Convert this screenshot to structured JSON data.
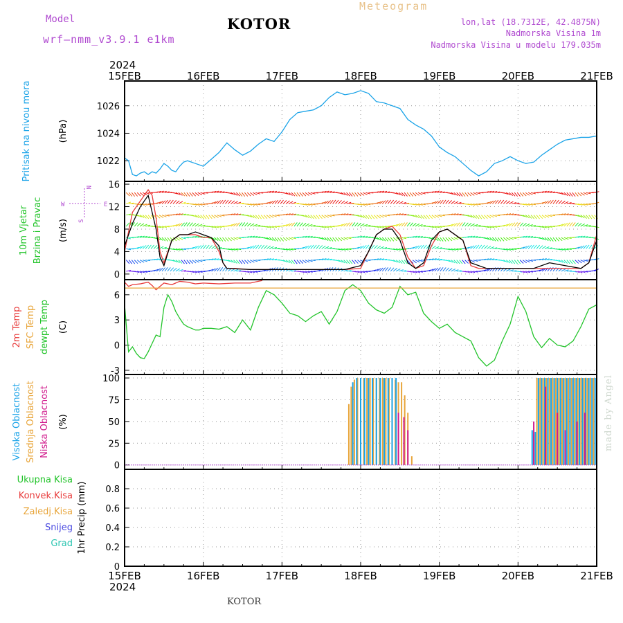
{
  "header": {
    "model_label": "Model",
    "model_name": "wrf—nmm_v3.9.1 e1km",
    "city": "KOTOR",
    "meteogram": "Meteogram",
    "lonlat": "lon,lat (18.7312E, 42.4875N)",
    "altitude": "Nadmorska Visina 1m",
    "model_altitude": "Nadmorska Visina u modelu 179.035m",
    "footer_city": "KOTOR",
    "credit": "made by Angel"
  },
  "colors": {
    "pressure": "#1aa3e8",
    "dewpoint": "#22c42a",
    "temp2m": "#e83a3a",
    "sfc_temp": "#e8a53a",
    "high_cloud": "#1aa3e8",
    "mid_cloud": "#e8a53a",
    "low_cloud": "#d01a8c",
    "wind_speed": "#e83a3a",
    "wind_alt_line": "#000000",
    "model_text": "#b04ad0",
    "meteogram_text": "#e8c28a"
  },
  "chart_data": {
    "type": "meteogram",
    "x_axis": {
      "year": "2024",
      "tick_labels": [
        "15FEB",
        "16FEB",
        "17FEB",
        "18FEB",
        "19FEB",
        "20FEB",
        "21FEB"
      ],
      "range_days": [
        0,
        6
      ]
    },
    "panels": [
      {
        "id": "pressure",
        "ylabel_lines": [
          "Pritisak na nivou mora"
        ],
        "unit": "(hPa)",
        "ylim": [
          1020.5,
          1027.8
        ],
        "yticks": [
          1022,
          1024,
          1026
        ],
        "grid": true,
        "series": [
          {
            "name": "pressure",
            "x": [
              0,
              0.05,
              0.1,
              0.15,
              0.2,
              0.25,
              0.3,
              0.35,
              0.4,
              0.45,
              0.5,
              0.55,
              0.6,
              0.65,
              0.7,
              0.75,
              0.8,
              0.9,
              1.0,
              1.1,
              1.2,
              1.3,
              1.4,
              1.5,
              1.6,
              1.7,
              1.8,
              1.9,
              2.0,
              2.1,
              2.2,
              2.3,
              2.4,
              2.5,
              2.6,
              2.7,
              2.8,
              2.9,
              3.0,
              3.1,
              3.2,
              3.3,
              3.4,
              3.5,
              3.6,
              3.7,
              3.8,
              3.9,
              4.0,
              4.1,
              4.2,
              4.3,
              4.4,
              4.5,
              4.6,
              4.7,
              4.8,
              4.9,
              5.0,
              5.1,
              5.2,
              5.3,
              5.4,
              5.5,
              5.6,
              5.7,
              5.8,
              5.9,
              6.0
            ],
            "values": [
              1022.2,
              1022.0,
              1021.0,
              1020.9,
              1021.1,
              1021.2,
              1021.0,
              1021.2,
              1021.1,
              1021.4,
              1021.8,
              1021.6,
              1021.3,
              1021.2,
              1021.6,
              1021.9,
              1022.0,
              1021.8,
              1021.6,
              1022.1,
              1022.6,
              1023.3,
              1022.8,
              1022.4,
              1022.7,
              1023.2,
              1023.6,
              1023.4,
              1024.1,
              1025.0,
              1025.5,
              1025.6,
              1025.7,
              1026.0,
              1026.6,
              1027.0,
              1026.8,
              1026.9,
              1027.1,
              1026.9,
              1026.3,
              1026.2,
              1026.0,
              1025.8,
              1025.0,
              1024.6,
              1024.3,
              1023.8,
              1023.0,
              1022.6,
              1022.3,
              1021.8,
              1021.3,
              1020.9,
              1021.2,
              1021.8,
              1022.0,
              1022.3,
              1022.0,
              1021.8,
              1021.9,
              1022.4,
              1022.8,
              1023.2,
              1023.5,
              1023.6,
              1023.7,
              1023.7,
              1023.8
            ]
          }
        ]
      },
      {
        "id": "wind",
        "ylabel_lines": [
          "10m Vjetar",
          "Brzina i Pravac"
        ],
        "unit": "(m/s)",
        "ylim": [
          -1,
          16.5
        ],
        "yticks": [
          0,
          4,
          8,
          12,
          16
        ],
        "grid": true,
        "series": [
          {
            "name": "wind_speed",
            "x": [
              0,
              0.1,
              0.2,
              0.3,
              0.35,
              0.4,
              0.45,
              0.5,
              0.6,
              0.7,
              0.8,
              0.9,
              1.0,
              1.1,
              1.2,
              1.25,
              1.3,
              1.4,
              1.6,
              1.8,
              2.0,
              2.2,
              2.4,
              2.6,
              2.8,
              3.0,
              3.1,
              3.2,
              3.3,
              3.4,
              3.5,
              3.6,
              3.7,
              3.8,
              3.9,
              4.0,
              4.1,
              4.2,
              4.3,
              4.4,
              4.5,
              4.6,
              4.8,
              5.0,
              5.2,
              5.4,
              5.6,
              5.8,
              5.9,
              6.0
            ],
            "values": [
              4,
              11,
              13,
              15,
              14,
              10,
              4,
              2,
              6,
              7,
              7,
              7,
              6.5,
              6.5,
              4,
              2,
              1,
              1,
              0.8,
              0.8,
              0.8,
              0.8,
              0.8,
              0.8,
              0.8,
              1,
              4,
              7,
              8,
              8.5,
              7,
              3,
              1,
              1.5,
              5,
              7.5,
              8,
              7,
              6,
              1.5,
              1,
              1,
              1,
              1,
              1,
              1,
              1,
              1,
              2,
              7
            ]
          },
          {
            "name": "wind_alt_line",
            "x": [
              0,
              0.1,
              0.2,
              0.3,
              0.4,
              0.45,
              0.5,
              0.6,
              0.7,
              0.8,
              0.9,
              1.0,
              1.1,
              1.2,
              1.25,
              1.3,
              1.6,
              2.0,
              2.4,
              2.8,
              3.0,
              3.1,
              3.2,
              3.3,
              3.4,
              3.5,
              3.6,
              3.7,
              3.8,
              3.9,
              4.0,
              4.1,
              4.2,
              4.3,
              4.4,
              4.6,
              5.0,
              5.2,
              5.4,
              5.6,
              5.8,
              5.9,
              6.0
            ],
            "values": [
              5,
              9,
              12,
              14,
              8,
              3,
              1.5,
              6,
              7,
              7,
              7.5,
              7,
              6.5,
              5,
              2,
              1,
              0.8,
              0.8,
              0.8,
              0.8,
              1.5,
              4,
              7,
              8,
              8,
              6,
              2,
              1,
              2,
              6,
              7.5,
              8,
              7,
              6,
              2,
              1,
              1,
              1,
              2,
              1.5,
              1,
              2,
              6
            ]
          }
        ]
      },
      {
        "id": "temperature",
        "ylabel_lines": [
          "2m Temp",
          "SFC Temp",
          "dewpt Temp"
        ],
        "unit": "(C)",
        "ylim": [
          -3.5,
          7.8
        ],
        "yticks": [
          -3,
          0,
          3,
          6
        ],
        "grid": true,
        "series": [
          {
            "name": "dewpoint",
            "x": [
              0,
              0.05,
              0.1,
              0.15,
              0.2,
              0.25,
              0.3,
              0.35,
              0.4,
              0.45,
              0.5,
              0.55,
              0.6,
              0.65,
              0.7,
              0.75,
              0.8,
              0.85,
              0.9,
              0.95,
              1.0,
              1.1,
              1.2,
              1.3,
              1.4,
              1.5,
              1.6,
              1.7,
              1.8,
              1.9,
              2.0,
              2.1,
              2.2,
              2.3,
              2.4,
              2.5,
              2.6,
              2.7,
              2.8,
              2.9,
              3.0,
              3.1,
              3.2,
              3.3,
              3.4,
              3.5,
              3.6,
              3.7,
              3.8,
              3.9,
              4.0,
              4.1,
              4.2,
              4.3,
              4.4,
              4.5,
              4.6,
              4.7,
              4.8,
              4.9,
              5.0,
              5.1,
              5.2,
              5.3,
              5.4,
              5.5,
              5.6,
              5.7,
              5.8,
              5.9,
              6.0
            ],
            "values": [
              4.8,
              -0.8,
              -0.2,
              -1.0,
              -1.5,
              -1.6,
              -0.8,
              0.2,
              1.2,
              1.0,
              4.5,
              6.0,
              5.2,
              4.0,
              3.2,
              2.5,
              2.2,
              2.0,
              1.8,
              1.8,
              2.0,
              2.0,
              1.9,
              2.2,
              1.5,
              3.0,
              1.8,
              4.5,
              6.5,
              6.0,
              5.0,
              3.8,
              3.5,
              2.8,
              3.5,
              4.0,
              2.5,
              4.0,
              6.5,
              7.2,
              6.5,
              5.0,
              4.2,
              3.8,
              4.5,
              7.0,
              6.0,
              6.3,
              3.8,
              2.8,
              2.0,
              2.5,
              1.5,
              1.0,
              0.5,
              -1.5,
              -2.5,
              -1.8,
              0.5,
              2.5,
              5.8,
              4.0,
              1.0,
              -0.3,
              0.8,
              0.0,
              -0.2,
              0.5,
              2.2,
              4.3,
              4.8
            ]
          },
          {
            "name": "temp2m",
            "x": [
              0,
              0.05,
              0.1,
              0.2,
              0.3,
              0.35,
              0.4,
              0.5,
              0.6,
              0.7,
              0.8,
              0.9,
              1.0,
              1.2,
              1.4,
              1.5,
              1.6,
              1.7,
              1.75
            ],
            "values": [
              7.5,
              7.0,
              7.2,
              7.3,
              7.5,
              7.1,
              6.6,
              7.4,
              7.2,
              7.6,
              7.5,
              7.3,
              7.4,
              7.3,
              7.4,
              7.4,
              7.4,
              7.6,
              7.7
            ]
          },
          {
            "name": "sfc_temp",
            "x": [
              0,
              6
            ],
            "values": [
              6.8,
              6.8
            ]
          }
        ]
      },
      {
        "id": "clouds",
        "ylabel_lines": [
          "Visoka Oblacnost",
          "Srednja Oblacnost",
          "Niska Oblacnost"
        ],
        "unit": "(%)",
        "ylim": [
          -5,
          104
        ],
        "yticks": [
          0,
          25,
          50,
          75,
          100
        ],
        "grid": true,
        "series": [
          {
            "name": "mid_cloud",
            "x": [
              2.85,
              2.88,
              2.92,
              2.96,
              3.0,
              3.04,
              3.08,
              3.12,
              3.16,
              3.2,
              3.24,
              3.28,
              3.32,
              3.36,
              3.4,
              3.44,
              3.48,
              3.52,
              3.56,
              3.6,
              3.65,
              5.2,
              5.24,
              5.28,
              5.32,
              5.36,
              5.4,
              5.44,
              5.48,
              5.52,
              5.56,
              5.6,
              5.64,
              5.68,
              5.72,
              5.76,
              5.8,
              5.84,
              5.88,
              5.92,
              5.96
            ],
            "values": [
              70,
              90,
              98,
              100,
              100,
              100,
              100,
              100,
              100,
              100,
              100,
              100,
              100,
              100,
              100,
              98,
              95,
              95,
              80,
              60,
              10,
              35,
              100,
              100,
              100,
              100,
              100,
              100,
              100,
              100,
              100,
              100,
              100,
              100,
              100,
              100,
              100,
              100,
              100,
              100,
              100
            ]
          },
          {
            "name": "high_cloud",
            "x": [
              2.9,
              2.95,
              3.0,
              3.05,
              3.1,
              3.15,
              3.2,
              3.25,
              3.3,
              3.35,
              3.4,
              3.45,
              5.18,
              5.22,
              5.26,
              5.3,
              5.34,
              5.38,
              5.42,
              5.46,
              5.5,
              5.54,
              5.58,
              5.62,
              5.66,
              5.7,
              5.74,
              5.78,
              5.82,
              5.86,
              5.9,
              5.94,
              5.98
            ],
            "values": [
              95,
              100,
              100,
              100,
              100,
              100,
              100,
              100,
              100,
              100,
              100,
              100,
              40,
              38,
              100,
              100,
              100,
              100,
              100,
              100,
              100,
              100,
              100,
              100,
              100,
              100,
              100,
              100,
              100,
              100,
              100,
              100,
              100
            ]
          },
          {
            "name": "low_cloud",
            "x": [
              3.48,
              3.55,
              3.6,
              5.2,
              5.35,
              5.5,
              5.6,
              5.75,
              5.85
            ],
            "values": [
              60,
              55,
              40,
              50,
              90,
              60,
              40,
              50,
              60
            ]
          }
        ]
      },
      {
        "id": "precip",
        "ylabel_lines": [
          "Ukupna Kisa",
          "Konvek.Kisa",
          "Zaledj.Kisa",
          "Snijeg",
          "Grad"
        ],
        "ylabel": "1hr Precip (mm)",
        "ylim": [
          0,
          1.0
        ],
        "yticks": [
          0,
          0.2,
          0.4,
          0.6,
          0.8
        ],
        "grid": true,
        "series": [
          {
            "name": "total_rain",
            "x": [
              0,
              6
            ],
            "values": [
              0,
              0
            ]
          }
        ]
      }
    ],
    "wind_arrow_legend": {
      "labels": [
        "W",
        "E",
        "N",
        "S"
      ]
    }
  }
}
